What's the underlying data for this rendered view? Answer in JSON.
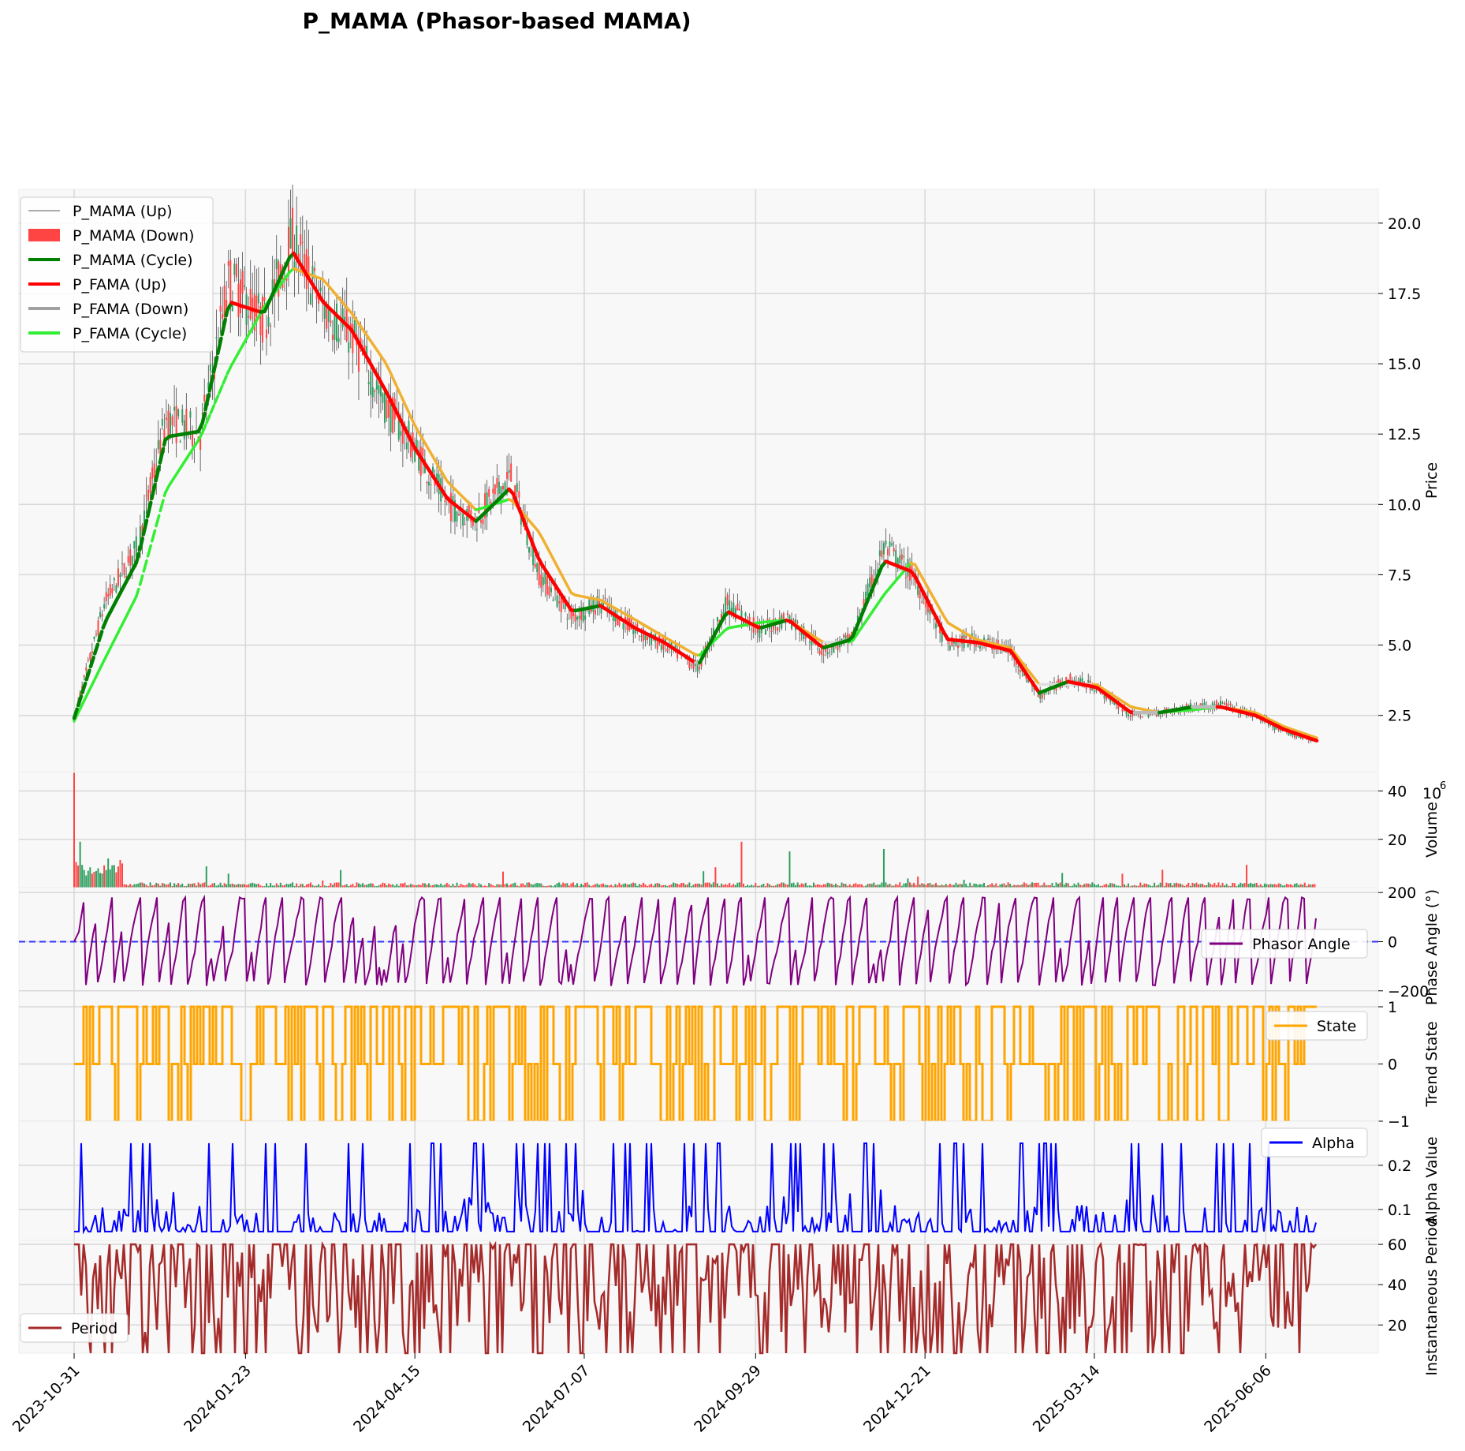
{
  "title": "P_MAMA (Phasor-based MAMA)",
  "colors": {
    "up_candle": "#2e9e5f",
    "down_candle": "#ff4444",
    "mama_green": "#008000",
    "fama_red": "#ff0000",
    "fama_grey": "#a0a0a0",
    "fama_lime": "#33ee33",
    "mama_orange": "#f0b030",
    "phasor": "#800080",
    "state": "#ffa500",
    "alpha": "#0000ff",
    "period": "#a52a2a",
    "panel_bg": "#f8f8f8",
    "grid": "#d8d8d8"
  },
  "x_ticks": [
    "2023-10-31",
    "2024-01-23",
    "2024-04-15",
    "2024-07-07",
    "2024-09-29",
    "2024-12-21",
    "2025-03-14",
    "2025-06-06"
  ],
  "legend_main": [
    {
      "label": "P_MAMA (Up)",
      "style": "thin",
      "color": "#555555"
    },
    {
      "label": "P_MAMA (Down)",
      "style": "box",
      "color": "#ff4444"
    },
    {
      "label": "P_MAMA (Cycle)",
      "style": "thick",
      "color": "#008000"
    },
    {
      "label": "P_FAMA (Up)",
      "style": "thick",
      "color": "#ff0000"
    },
    {
      "label": "P_FAMA (Down)",
      "style": "thick",
      "color": "#a0a0a0"
    },
    {
      "label": "P_FAMA (Cycle)",
      "style": "thick",
      "color": "#33ee33"
    }
  ],
  "legend_phasor": "Phasor Angle",
  "legend_state": "State",
  "legend_alpha": "Alpha",
  "legend_period": "Period",
  "chart_data": [
    {
      "type": "line",
      "panel": "price",
      "ylabel": "Price",
      "ylim": [
        0.5,
        21.2
      ],
      "yticks": [
        "2.5",
        "5.0",
        "7.5",
        "10.0",
        "12.5",
        "15.0",
        "17.5",
        "20.0"
      ],
      "x": [
        "2023-10-31",
        "2023-11-15",
        "2023-12-01",
        "2023-12-15",
        "2024-01-01",
        "2024-01-15",
        "2024-02-01",
        "2024-02-15",
        "2024-03-01",
        "2024-03-15",
        "2024-04-01",
        "2024-04-15",
        "2024-05-01",
        "2024-05-15",
        "2024-06-01",
        "2024-06-15",
        "2024-07-01",
        "2024-07-15",
        "2024-08-01",
        "2024-08-15",
        "2024-09-01",
        "2024-09-15",
        "2024-10-01",
        "2024-10-15",
        "2024-11-01",
        "2024-11-15",
        "2024-12-01",
        "2024-12-15",
        "2025-01-01",
        "2025-01-15",
        "2025-02-01",
        "2025-02-15",
        "2025-03-01",
        "2025-03-15",
        "2025-04-01",
        "2025-04-15",
        "2025-05-01",
        "2025-05-15",
        "2025-06-01",
        "2025-06-15",
        "2025-07-01"
      ],
      "series": [
        {
          "name": "P_MAMA (Up)",
          "values": [
            2.4,
            6.5,
            8.5,
            13,
            12.5,
            18,
            16.5,
            19.5,
            17,
            16,
            13.5,
            12,
            10,
            9.5,
            11,
            7.5,
            6,
            6.5,
            5.5,
            5,
            4.2,
            6.5,
            5.5,
            6,
            4.8,
            5.2,
            8.5,
            7.5,
            5,
            5.2,
            4.8,
            3.2,
            3.8,
            3.5,
            2.5,
            2.6,
            2.8,
            2.9,
            2.5,
            1.9,
            1.6
          ]
        },
        {
          "name": "P_MAMA (Cycle)",
          "values": [
            2.4,
            5.8,
            8.0,
            12.4,
            12.6,
            17.2,
            16.8,
            19.0,
            17.2,
            16.2,
            14.0,
            12.0,
            10.2,
            9.4,
            10.6,
            8.0,
            6.2,
            6.4,
            5.6,
            5.1,
            4.3,
            6.2,
            5.6,
            5.9,
            4.9,
            5.2,
            8.0,
            7.6,
            5.2,
            5.1,
            4.8,
            3.3,
            3.7,
            3.5,
            2.6,
            2.6,
            2.8,
            2.8,
            2.5,
            2.0,
            1.6
          ]
        },
        {
          "name": "P_FAMA (Cycle)",
          "values": [
            2.3,
            4.5,
            6.8,
            10.5,
            12.4,
            14.8,
            17.0,
            18.4,
            18.0,
            16.8,
            15.0,
            12.8,
            10.8,
            9.8,
            10.2,
            9.0,
            6.8,
            6.6,
            5.9,
            5.3,
            4.6,
            5.6,
            5.8,
            5.9,
            5.1,
            5.1,
            6.8,
            8.0,
            5.8,
            5.2,
            4.9,
            3.6,
            3.6,
            3.6,
            2.8,
            2.6,
            2.7,
            2.8,
            2.6,
            2.1,
            1.7
          ]
        }
      ]
    },
    {
      "type": "bar",
      "panel": "volume",
      "ylabel": "Volume",
      "y_unit": "1e6",
      "ylim": [
        0,
        48
      ],
      "yticks": [
        "20",
        "40"
      ]
    },
    {
      "type": "line",
      "panel": "phasor",
      "ylabel": "Phase Angle (°)",
      "ylim": [
        -265,
        220
      ],
      "yticks": [
        "−200",
        "0",
        "200"
      ],
      "series": [
        {
          "name": "Phasor Angle",
          "range": [
            -180,
            180
          ]
        }
      ]
    },
    {
      "type": "line",
      "panel": "state",
      "ylabel": "Trend State",
      "ylim": [
        -1,
        1
      ],
      "yticks": [
        "−1",
        "0",
        "1"
      ],
      "series": [
        {
          "name": "State",
          "values": [
            -1,
            0,
            1
          ]
        }
      ]
    },
    {
      "type": "line",
      "panel": "alpha",
      "ylabel": "Alpha Value",
      "ylim": [
        0.03,
        0.3
      ],
      "yticks": [
        "0.1",
        "0.2"
      ],
      "series": [
        {
          "name": "Alpha",
          "range": [
            0.05,
            0.25
          ]
        }
      ]
    },
    {
      "type": "line",
      "panel": "period",
      "ylabel": "Instantaneous Period",
      "ylim": [
        6,
        62
      ],
      "yticks": [
        "20",
        "40",
        "60"
      ],
      "series": [
        {
          "name": "Period",
          "range": [
            6,
            60
          ]
        }
      ]
    }
  ]
}
